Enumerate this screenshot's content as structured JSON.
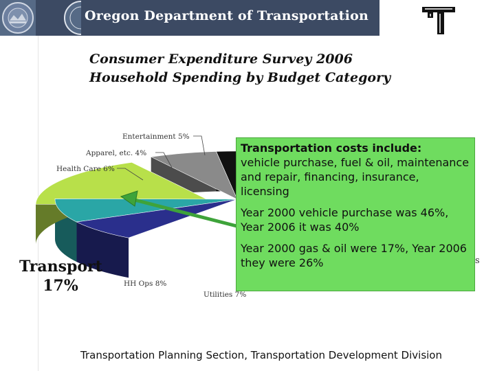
{
  "header": {
    "title": "Oregon Department of Transportation"
  },
  "chart_data": {
    "type": "pie",
    "title": "Consumer Expenditure Survey 2006\nHousehold Spending by Budget Category",
    "slices": [
      {
        "label": "Entertainment 5%",
        "value": 5,
        "color": "#1f5fd6"
      },
      {
        "label": "Apparel, etc. 4%",
        "value": 4,
        "color": "#111111"
      },
      {
        "label": "Health Care 6%",
        "value": 6,
        "color": "#8a8a8a"
      },
      {
        "label": "Transport 17%",
        "value": 17,
        "color": "#b8e04a"
      },
      {
        "label": "HH Ops 8%",
        "value": 8,
        "color": "#2aa6a6"
      },
      {
        "label": "Utilities 7%",
        "value": 7,
        "color": "#2a2f8c"
      }
    ],
    "highlight": "Transport",
    "callout_arrow": true
  },
  "highlight_label": {
    "line1": "Transport",
    "line2": "17%"
  },
  "callout": {
    "heading": "Transportation costs include:",
    "body": "vehicle purchase, fuel & oil, maintenance and repair, financing, insurance, licensing",
    "para2": "Year 2000 vehicle purchase was 46%, Year 2006 it was 40%",
    "para3": "Year 2000 gas & oil were 17%, Year 2006 they were 26%",
    "edge_glyph": "s"
  },
  "footer": {
    "text": "Transportation Planning Section, Transportation Development Division"
  },
  "colors": {
    "header_bg": "#3c4a63",
    "callout_bg": "#6fdc5f",
    "transport": "#b8e04a"
  }
}
